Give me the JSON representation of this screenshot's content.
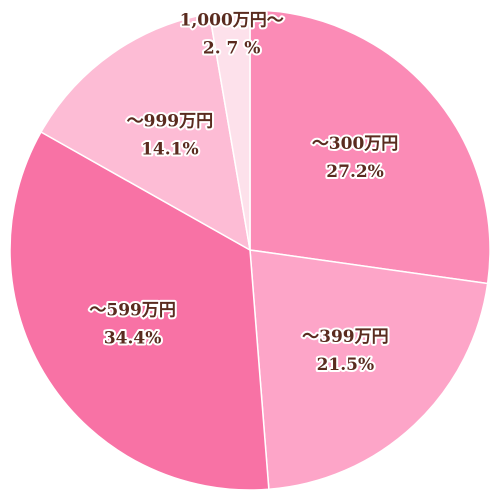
{
  "chart_data": {
    "type": "pie",
    "categories": [
      "～300万円",
      "～399万円",
      "～599万円",
      "～999万円",
      "1,000万円～"
    ],
    "values": [
      27.2,
      21.5,
      34.4,
      14.1,
      2.7
    ],
    "value_labels": [
      "27.2%",
      "21.5%",
      "34.4%",
      "14.1%",
      "2. 7 %"
    ],
    "colors": [
      "#fb8bb6",
      "#fda5c8",
      "#f872a5",
      "#fdbcd5",
      "#fde1eb"
    ]
  }
}
